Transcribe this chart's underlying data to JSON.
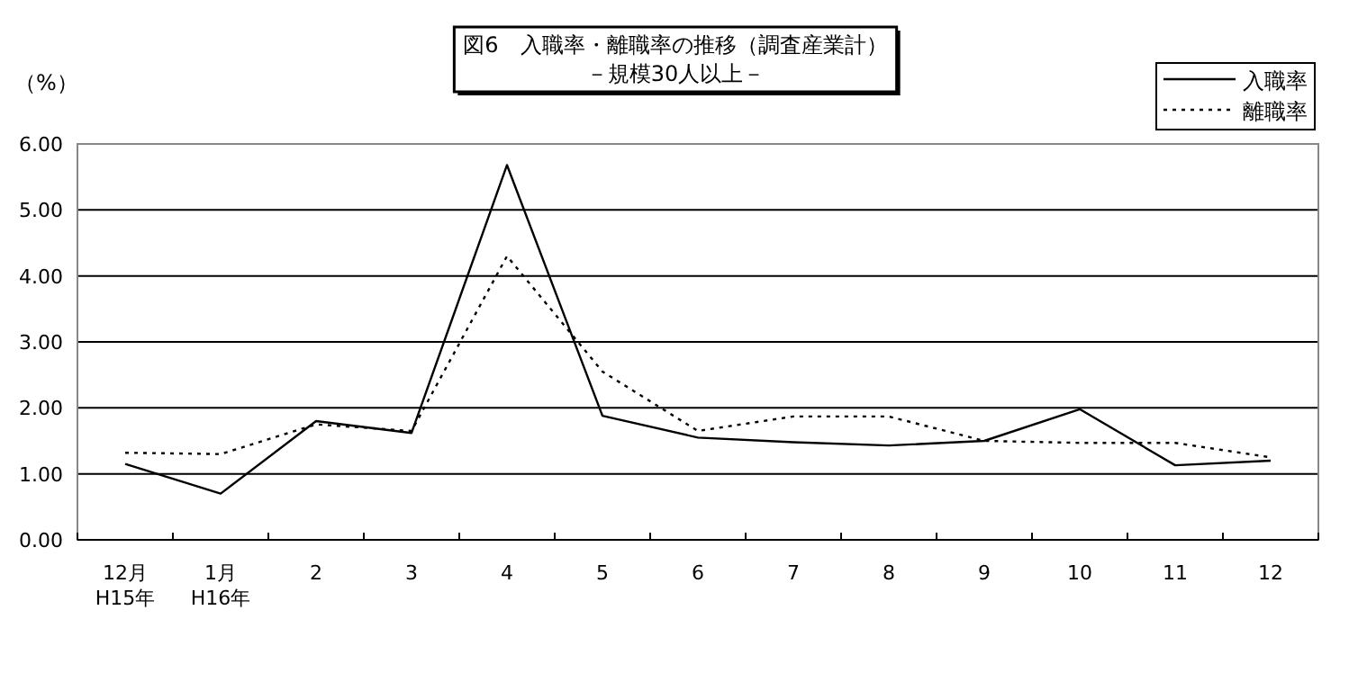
{
  "chart_data": {
    "type": "line",
    "title": "図6　入職率・離職率の推移（調査産業計）",
    "subtitle": "－規模30人以上－",
    "ylabel": "（%）",
    "categories": [
      "12月\nH15年",
      "1月\nH16年",
      "2",
      "3",
      "4",
      "5",
      "6",
      "7",
      "8",
      "9",
      "10",
      "11",
      "12"
    ],
    "series": [
      {
        "name": "入職率",
        "color": "#000000",
        "line_style": "solid",
        "values": [
          1.15,
          0.7,
          1.8,
          1.62,
          5.68,
          1.88,
          1.55,
          1.48,
          1.43,
          1.5,
          1.98,
          1.13,
          1.2
        ]
      },
      {
        "name": "離職率",
        "color": "#000000",
        "line_style": "dotted",
        "values": [
          1.32,
          1.3,
          1.75,
          1.65,
          4.3,
          2.55,
          1.65,
          1.87,
          1.87,
          1.5,
          1.47,
          1.47,
          1.25
        ]
      }
    ],
    "ylim": [
      0,
      6
    ],
    "yticks": [
      {
        "value": 0,
        "label": "0.00"
      },
      {
        "value": 1,
        "label": "1.00"
      },
      {
        "value": 2,
        "label": "2.00"
      },
      {
        "value": 3,
        "label": "3.00"
      },
      {
        "value": 4,
        "label": "4.00"
      },
      {
        "value": 5,
        "label": "5.00"
      },
      {
        "value": 6,
        "label": "6.00"
      }
    ],
    "grid": "y",
    "legend": "top right",
    "marker": "none"
  }
}
